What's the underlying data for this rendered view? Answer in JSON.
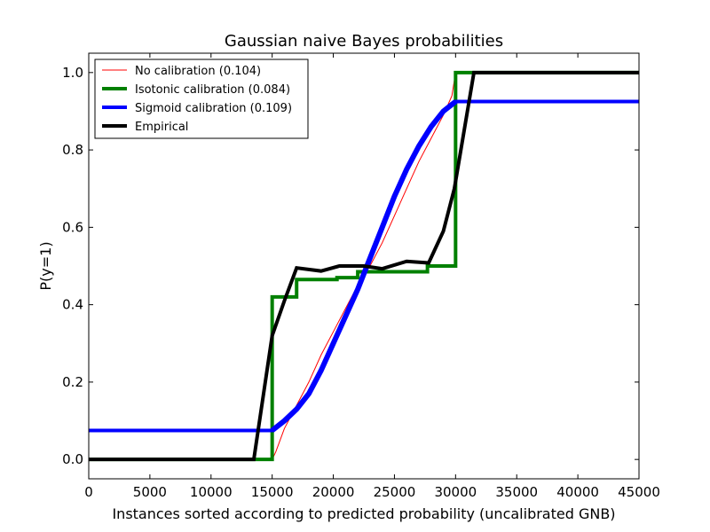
{
  "chart_data": {
    "type": "line",
    "title": "Gaussian naive Bayes probabilities",
    "xlabel": "Instances sorted according to predicted probability (uncalibrated GNB)",
    "ylabel": "P(y=1)",
    "xlim": [
      0,
      45000
    ],
    "ylim": [
      -0.05,
      1.05
    ],
    "xticks": [
      0,
      5000,
      10000,
      15000,
      20000,
      25000,
      30000,
      35000,
      40000,
      45000
    ],
    "yticks": [
      0.0,
      0.2,
      0.4,
      0.6,
      0.8,
      1.0
    ],
    "xtick_labels": [
      "0",
      "5000",
      "10000",
      "15000",
      "20000",
      "25000",
      "30000",
      "35000",
      "40000",
      "45000"
    ],
    "ytick_labels": [
      "0.0",
      "0.2",
      "0.4",
      "0.6",
      "0.8",
      "1.0"
    ],
    "grid": false,
    "legend_position": "top-left",
    "series": [
      {
        "name": "No calibration (0.104)",
        "color": "#ff0000",
        "step": false,
        "points": [
          [
            0,
            0
          ],
          [
            15000,
            0
          ],
          [
            15300,
            0.02
          ],
          [
            16000,
            0.08
          ],
          [
            17000,
            0.14
          ],
          [
            18000,
            0.2
          ],
          [
            19000,
            0.27
          ],
          [
            20000,
            0.33
          ],
          [
            21000,
            0.39
          ],
          [
            22000,
            0.45
          ],
          [
            23000,
            0.5
          ],
          [
            24000,
            0.56
          ],
          [
            25000,
            0.63
          ],
          [
            26000,
            0.7
          ],
          [
            27000,
            0.77
          ],
          [
            28000,
            0.83
          ],
          [
            29000,
            0.89
          ],
          [
            29700,
            0.94
          ],
          [
            30000,
            1.0
          ],
          [
            45000,
            1.0
          ]
        ]
      },
      {
        "name": "Isotonic calibration (0.084)",
        "color": "#008000",
        "step": true,
        "points": [
          [
            0,
            0
          ],
          [
            15000,
            0
          ],
          [
            15000,
            0.42
          ],
          [
            17000,
            0.42
          ],
          [
            17000,
            0.465
          ],
          [
            20300,
            0.465
          ],
          [
            20300,
            0.47
          ],
          [
            22000,
            0.47
          ],
          [
            22000,
            0.485
          ],
          [
            27700,
            0.485
          ],
          [
            27700,
            0.5
          ],
          [
            30000,
            0.5
          ],
          [
            30000,
            1.0
          ],
          [
            45000,
            1.0
          ]
        ]
      },
      {
        "name": "Sigmoid calibration (0.109)",
        "color": "#0000ff",
        "step": false,
        "points": [
          [
            0,
            0.075
          ],
          [
            15000,
            0.075
          ],
          [
            16000,
            0.1
          ],
          [
            17000,
            0.13
          ],
          [
            18000,
            0.17
          ],
          [
            19000,
            0.23
          ],
          [
            20000,
            0.3
          ],
          [
            21000,
            0.37
          ],
          [
            22000,
            0.44
          ],
          [
            23000,
            0.52
          ],
          [
            24000,
            0.6
          ],
          [
            25000,
            0.68
          ],
          [
            26000,
            0.75
          ],
          [
            27000,
            0.81
          ],
          [
            28000,
            0.86
          ],
          [
            29000,
            0.9
          ],
          [
            30000,
            0.925
          ],
          [
            45000,
            0.925
          ]
        ]
      },
      {
        "name": "Empirical",
        "color": "#000000",
        "step": false,
        "points": [
          [
            0,
            0
          ],
          [
            13500,
            0
          ],
          [
            15000,
            0.32
          ],
          [
            16000,
            0.41
          ],
          [
            17000,
            0.495
          ],
          [
            19000,
            0.487
          ],
          [
            20500,
            0.5
          ],
          [
            22500,
            0.5
          ],
          [
            24000,
            0.493
          ],
          [
            26000,
            0.512
          ],
          [
            27800,
            0.508
          ],
          [
            29000,
            0.59
          ],
          [
            29900,
            0.7
          ],
          [
            31500,
            1.0
          ],
          [
            45000,
            1.0
          ]
        ]
      }
    ]
  }
}
